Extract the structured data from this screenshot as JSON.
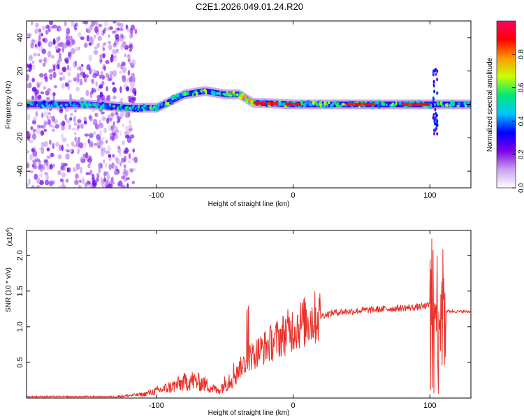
{
  "title": "C2E1.2026.049.01.24.R20",
  "chart_data": [
    {
      "type": "heatmap",
      "xlabel": "Height of straight line (km)",
      "ylabel": "Frequency (Hz)",
      "xlim": [
        -195,
        130
      ],
      "ylim": [
        -50,
        50
      ],
      "xticks": [
        -100,
        0,
        100
      ],
      "xtick_labels": [
        "-100",
        "0",
        "100"
      ],
      "yticks": [
        -40,
        -20,
        0,
        20,
        40
      ],
      "ytick_labels": [
        "-40",
        "-20",
        "0",
        "20",
        "40"
      ],
      "colorbar": {
        "label": "Normalized spectral amplitude",
        "range": [
          0,
          1
        ],
        "ticks": [
          0,
          0.2,
          0.4,
          0.6,
          0.8
        ],
        "tick_labels": [
          "0.0",
          "0.2",
          "0.4",
          "0.6",
          "0.8"
        ],
        "colors": [
          "#ffffff",
          "#c8a0f0",
          "#7a00e6",
          "#0000ff",
          "#00c8ff",
          "#00e676",
          "#c8ff00",
          "#ff9900",
          "#ff0000",
          "#ff0066"
        ]
      },
      "ridge": [
        {
          "x": -195,
          "f": 0
        },
        {
          "x": -150,
          "f": 0
        },
        {
          "x": -120,
          "f": -2
        },
        {
          "x": -100,
          "f": -2
        },
        {
          "x": -90,
          "f": 2
        },
        {
          "x": -80,
          "f": 6
        },
        {
          "x": -65,
          "f": 8
        },
        {
          "x": -50,
          "f": 6
        },
        {
          "x": -40,
          "f": 6
        },
        {
          "x": -30,
          "f": 1
        },
        {
          "x": 0,
          "f": 0
        },
        {
          "x": 130,
          "f": 0
        }
      ]
    },
    {
      "type": "line",
      "xlabel": "Height of straight line (km)",
      "ylabel": "SNR (10 * v/v)",
      "y_multiplier": "(x10",
      "y_multiplier_exp": "4",
      "y_multiplier_close": ")",
      "xlim": [
        -195,
        130
      ],
      "ylim": [
        0,
        2.35
      ],
      "xticks": [
        -100,
        0,
        100
      ],
      "xtick_labels": [
        "-100",
        "0",
        "100"
      ],
      "yticks": [
        0.5,
        1.0,
        1.5,
        2.0
      ],
      "ytick_labels": [
        "0.5",
        "1.0",
        "1.5",
        "2.0"
      ],
      "color": "#e8312a",
      "envelope": [
        {
          "x": -195,
          "y": 0.02
        },
        {
          "x": -130,
          "y": 0.02
        },
        {
          "x": -110,
          "y": 0.05
        },
        {
          "x": -90,
          "y": 0.15
        },
        {
          "x": -75,
          "y": 0.25
        },
        {
          "x": -65,
          "y": 0.2
        },
        {
          "x": -55,
          "y": 0.1
        },
        {
          "x": -40,
          "y": 0.4
        },
        {
          "x": -30,
          "y": 0.6
        },
        {
          "x": -20,
          "y": 0.72
        },
        {
          "x": -10,
          "y": 0.85
        },
        {
          "x": 0,
          "y": 0.98
        },
        {
          "x": 10,
          "y": 1.08
        },
        {
          "x": 20,
          "y": 1.15
        },
        {
          "x": 30,
          "y": 1.2
        },
        {
          "x": 60,
          "y": 1.24
        },
        {
          "x": 95,
          "y": 1.28
        },
        {
          "x": 100,
          "y": 1.3
        },
        {
          "x": 110,
          "y": 1.22
        },
        {
          "x": 130,
          "y": 1.21
        }
      ]
    }
  ]
}
